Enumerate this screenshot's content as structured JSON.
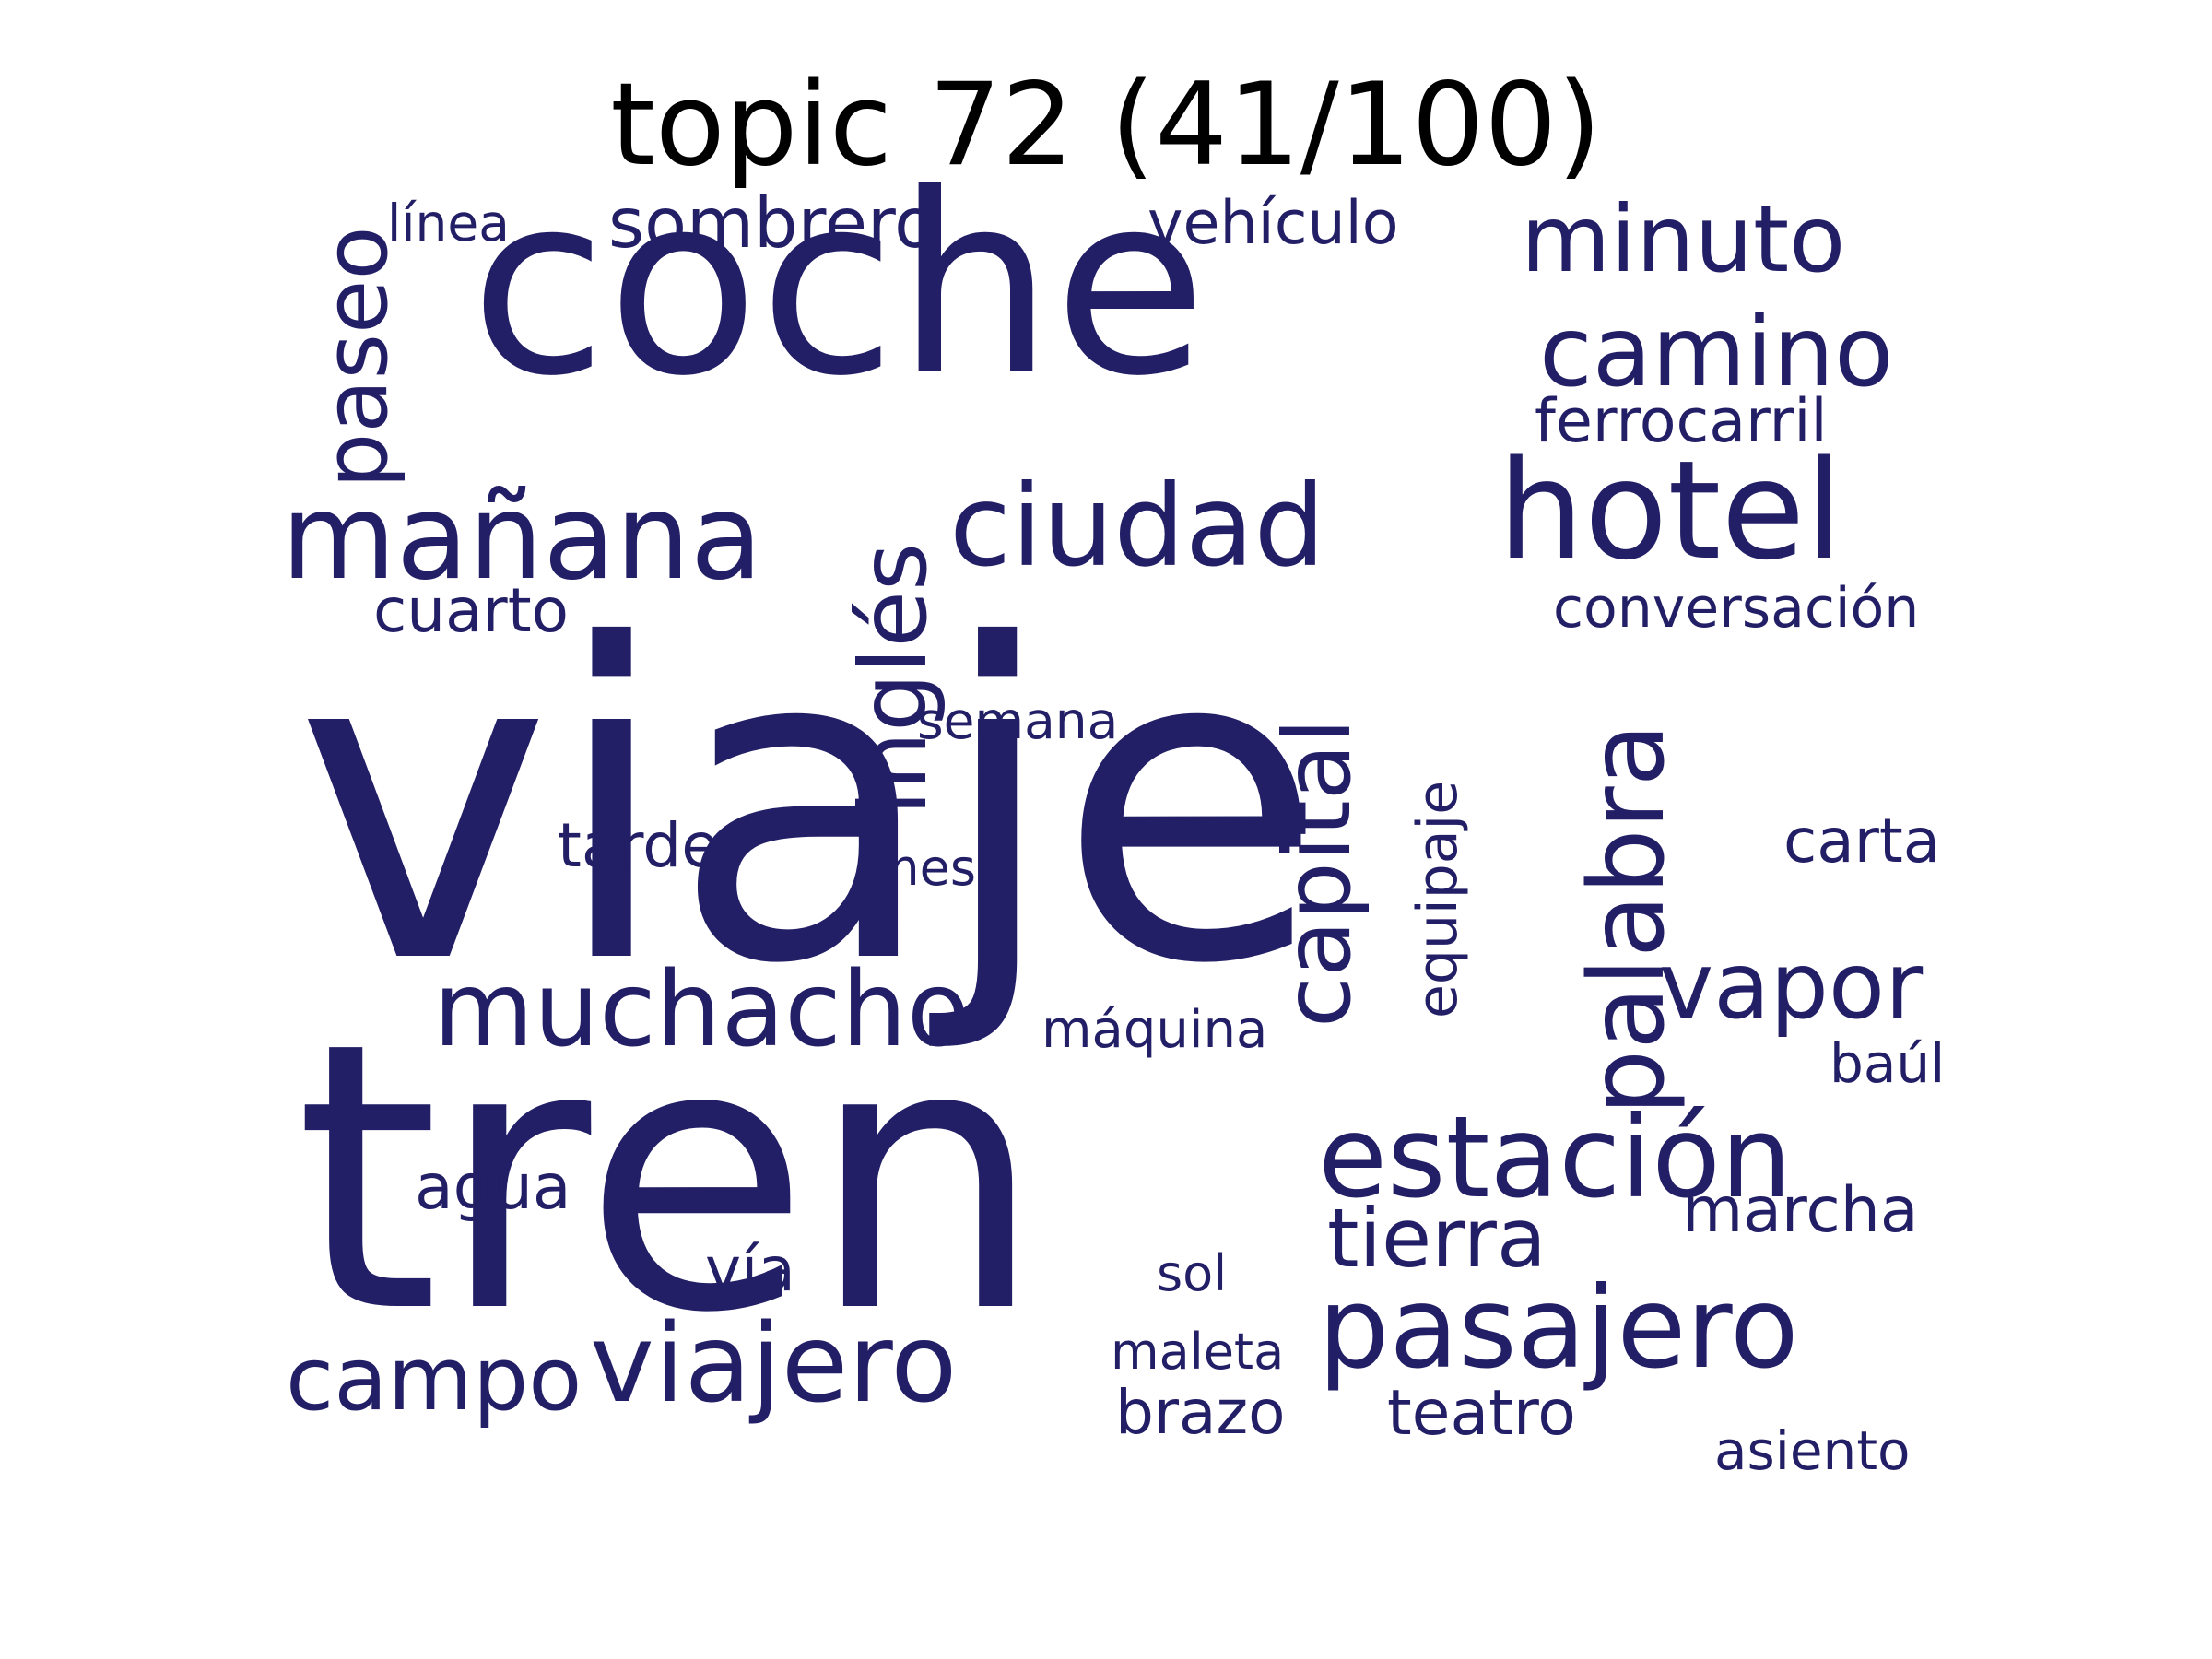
{
  "title": "topic 72 (41/100)",
  "word_color": "#231f66",
  "title_color": "#000000",
  "background_color": "#ffffff",
  "words": [
    {
      "text": "viaje",
      "orientation": "horizontal"
    },
    {
      "text": "tren",
      "orientation": "horizontal"
    },
    {
      "text": "coche",
      "orientation": "horizontal"
    },
    {
      "text": "ciudad",
      "orientation": "horizontal"
    },
    {
      "text": "hotel",
      "orientation": "horizontal"
    },
    {
      "text": "mañana",
      "orientation": "horizontal"
    },
    {
      "text": "camino",
      "orientation": "horizontal"
    },
    {
      "text": "minuto",
      "orientation": "horizontal"
    },
    {
      "text": "estación",
      "orientation": "horizontal"
    },
    {
      "text": "pasajero",
      "orientation": "horizontal"
    },
    {
      "text": "muchacho",
      "orientation": "horizontal"
    },
    {
      "text": "viajero",
      "orientation": "horizontal"
    },
    {
      "text": "vapor",
      "orientation": "horizontal"
    },
    {
      "text": "tierra",
      "orientation": "horizontal"
    },
    {
      "text": "campo",
      "orientation": "horizontal"
    },
    {
      "text": "palabra",
      "orientation": "vertical"
    },
    {
      "text": "capital",
      "orientation": "vertical"
    },
    {
      "text": "inglés",
      "orientation": "vertical"
    },
    {
      "text": "paseo",
      "orientation": "vertical"
    },
    {
      "text": "sombrero",
      "orientation": "horizontal"
    },
    {
      "text": "ferrocarril",
      "orientation": "horizontal"
    },
    {
      "text": "vehículo",
      "orientation": "horizontal"
    },
    {
      "text": "tarde",
      "orientation": "horizontal"
    },
    {
      "text": "carta",
      "orientation": "horizontal"
    },
    {
      "text": "conversación",
      "orientation": "horizontal"
    },
    {
      "text": "cuarto",
      "orientation": "horizontal"
    },
    {
      "text": "agua",
      "orientation": "horizontal"
    },
    {
      "text": "marcha",
      "orientation": "horizontal"
    },
    {
      "text": "teatro",
      "orientation": "horizontal"
    },
    {
      "text": "brazo",
      "orientation": "horizontal"
    },
    {
      "text": "vía",
      "orientation": "horizontal"
    },
    {
      "text": "equipaje",
      "orientation": "vertical"
    },
    {
      "text": "asiento",
      "orientation": "horizontal"
    },
    {
      "text": "baúl",
      "orientation": "horizontal"
    },
    {
      "text": "máquina",
      "orientation": "horizontal"
    },
    {
      "text": "línea",
      "orientation": "horizontal"
    },
    {
      "text": "semana",
      "orientation": "horizontal"
    },
    {
      "text": "maleta",
      "orientation": "horizontal"
    },
    {
      "text": "mes",
      "orientation": "horizontal"
    },
    {
      "text": "sol",
      "orientation": "horizontal"
    }
  ]
}
